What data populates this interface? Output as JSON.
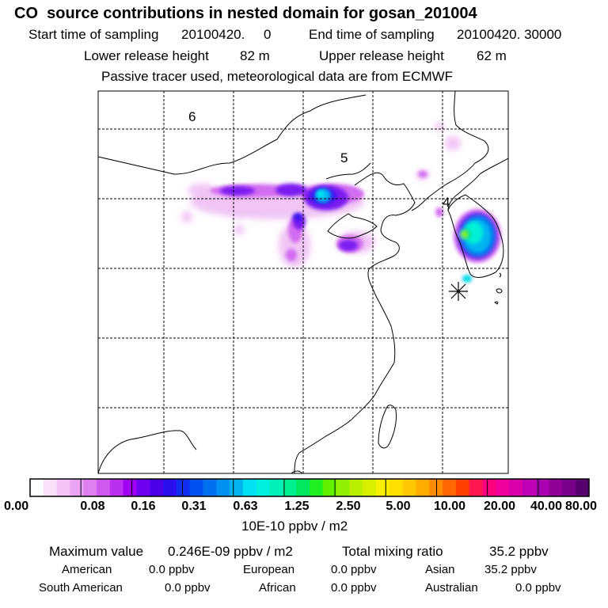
{
  "header": {
    "title": "CO  source contributions in nested domain for gosan_201004",
    "start_label": "Start time of sampling",
    "start_value": "20100420.     0",
    "end_label": "End time of sampling",
    "end_value": "20100420. 30000",
    "lower_label": "Lower release height",
    "lower_value": "82 m",
    "upper_label": "Upper release height",
    "upper_value": "62 m",
    "note": "Passive tracer used, meteorological data are from ECMWF"
  },
  "map": {
    "region_labels": [
      "6",
      "5",
      "4"
    ],
    "receptor_marker": "asterisk-marker"
  },
  "colorbar": {
    "tick_labels": [
      "0.00",
      "0.08",
      "0.16",
      "0.31",
      "0.63",
      "1.25",
      "2.50",
      "5.00",
      "10.00",
      "20.00",
      "40.00",
      "80.00"
    ],
    "units": "10E-10 ppbv / m2",
    "colors": [
      "#ffffff",
      "#fbe0fb",
      "#f5c3f7",
      "#eba4f3",
      "#e07ff0",
      "#cf5af0",
      "#bb2ff0",
      "#a000f0",
      "#7000f0",
      "#4b00e8",
      "#2a10ee",
      "#1030f0",
      "#0050f0",
      "#0070f0",
      "#0090f0",
      "#00b4f0",
      "#00e0f0",
      "#00f0e0",
      "#00f0b8",
      "#00f090",
      "#00e860",
      "#20f020",
      "#60f000",
      "#90f000",
      "#b8f000",
      "#d8f000",
      "#f8f000",
      "#ffe000",
      "#ffc800",
      "#ffac00",
      "#ff8c00",
      "#ff6800",
      "#ff4000",
      "#ff1850",
      "#ff0080",
      "#f0009c",
      "#d800a8",
      "#c000b4",
      "#a800b0",
      "#900098",
      "#780088",
      "#580070"
    ]
  },
  "summary": {
    "max_label": "Maximum value",
    "max_value": "0.246E-09 ppbv / m2",
    "total_label": "Total mixing ratio",
    "total_value": "35.2 ppbv",
    "regions": [
      {
        "name": "American",
        "value": "0.0 ppbv"
      },
      {
        "name": "European",
        "value": "0.0 ppbv"
      },
      {
        "name": "Asian",
        "value": "35.2 ppbv"
      },
      {
        "name": "South American",
        "value": "0.0 ppbv"
      },
      {
        "name": "African",
        "value": "0.0 ppbv"
      },
      {
        "name": "Australian",
        "value": "0.0 ppbv"
      }
    ]
  }
}
